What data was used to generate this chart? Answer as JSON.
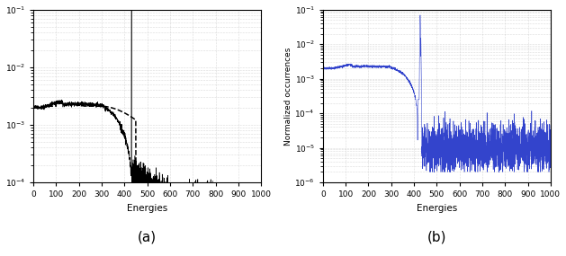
{
  "xlim": [
    0,
    1000
  ],
  "ylim_a": [
    0.0001,
    0.1
  ],
  "ylim_b": [
    1e-06,
    0.1
  ],
  "xlabel_a": "Energies",
  "xlabel_b": "Energies",
  "ylabel_b": "Normalized occurrences",
  "label_a": "(a)",
  "label_b": "(b)",
  "fig_width": 6.29,
  "fig_height": 2.85,
  "bg_color": "#ffffff",
  "grid_color": "#bbbbbb",
  "line_color_a_solid": "#000000",
  "line_color_a_dash": "#000000",
  "line_color_b": "#3344cc",
  "seed": 42
}
